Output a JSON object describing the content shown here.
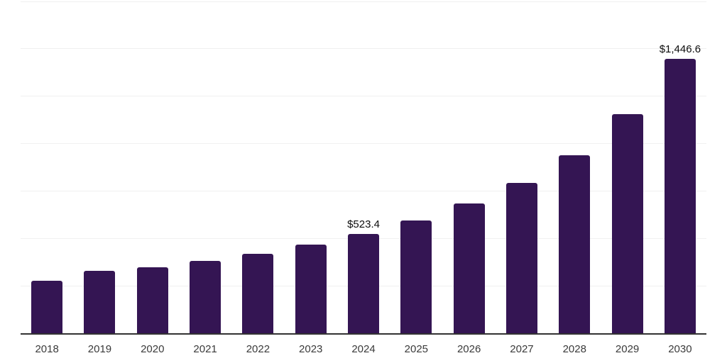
{
  "chart_data": {
    "type": "bar",
    "title": "",
    "xlabel": "",
    "ylabel": "",
    "categories": [
      "2018",
      "2019",
      "2020",
      "2021",
      "2022",
      "2023",
      "2024",
      "2025",
      "2026",
      "2027",
      "2028",
      "2029",
      "2030"
    ],
    "values": [
      277,
      328,
      349,
      381,
      419,
      467,
      523.4,
      594,
      685,
      791,
      938,
      1155,
      1446.6
    ],
    "point_labels": [
      "",
      "",
      "",
      "",
      "",
      "",
      "$523.4",
      "",
      "",
      "",
      "",
      "",
      "$1,446.6"
    ],
    "ylim": [
      0,
      1750
    ],
    "gridline_step": 250,
    "grid": true,
    "legend": false,
    "colors": {
      "bar": "#341553",
      "axis": "#333333",
      "gridline": "#f0f0f0",
      "value_label": "#0d0d0d",
      "tick_label": "#3a3a3a",
      "background": "#ffffff"
    }
  }
}
